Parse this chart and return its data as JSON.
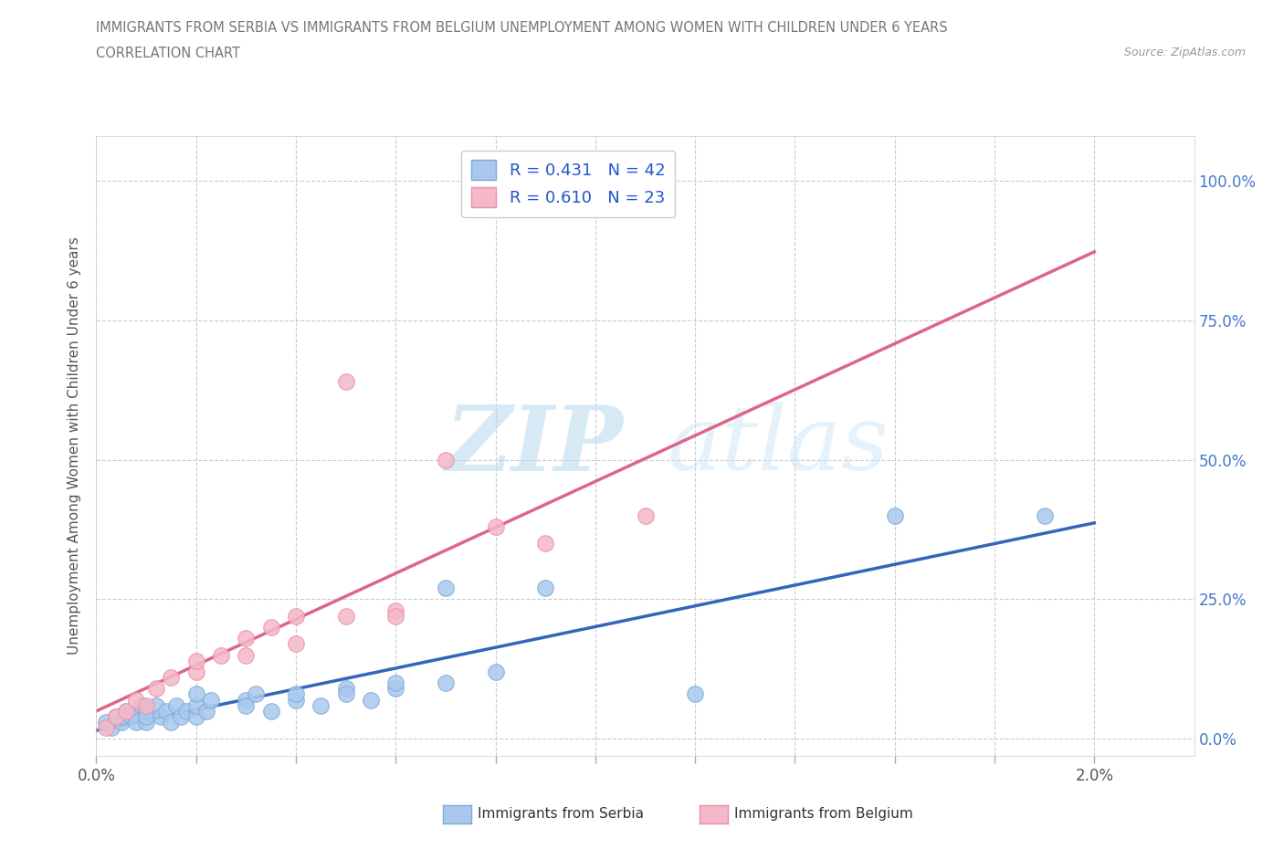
{
  "title_line1": "IMMIGRANTS FROM SERBIA VS IMMIGRANTS FROM BELGIUM UNEMPLOYMENT AMONG WOMEN WITH CHILDREN UNDER 6 YEARS",
  "title_line2": "CORRELATION CHART",
  "source": "Source: ZipAtlas.com",
  "ylabel_label": "Unemployment Among Women with Children Under 6 years",
  "xlim": [
    0.0,
    0.022
  ],
  "ylim": [
    -0.03,
    1.08
  ],
  "serbia_color": "#aac8ee",
  "serbia_edge_color": "#7aadd4",
  "belgium_color": "#f5b8c8",
  "belgium_edge_color": "#e890a8",
  "serbia_line_color": "#3366bb",
  "belgium_line_color": "#dd6688",
  "r_serbia": 0.431,
  "n_serbia": 42,
  "r_belgium": 0.61,
  "n_belgium": 23,
  "legend_text_color": "#2255cc",
  "watermark_color": "#cce4f5",
  "grid_color": "#cccccc",
  "background_color": "#ffffff",
  "serbia_x": [
    0.0002,
    0.0003,
    0.0004,
    0.0005,
    0.0006,
    0.0007,
    0.0008,
    0.0009,
    0.001,
    0.001,
    0.001,
    0.0012,
    0.0013,
    0.0014,
    0.0015,
    0.0016,
    0.0017,
    0.0018,
    0.002,
    0.002,
    0.002,
    0.0022,
    0.0023,
    0.003,
    0.003,
    0.0032,
    0.0035,
    0.004,
    0.004,
    0.0045,
    0.005,
    0.005,
    0.0055,
    0.006,
    0.006,
    0.007,
    0.007,
    0.008,
    0.009,
    0.012,
    0.016,
    0.019
  ],
  "serbia_y": [
    0.03,
    0.02,
    0.04,
    0.03,
    0.05,
    0.04,
    0.03,
    0.06,
    0.03,
    0.05,
    0.04,
    0.06,
    0.04,
    0.05,
    0.03,
    0.06,
    0.04,
    0.05,
    0.04,
    0.06,
    0.08,
    0.05,
    0.07,
    0.07,
    0.06,
    0.08,
    0.05,
    0.07,
    0.08,
    0.06,
    0.09,
    0.08,
    0.07,
    0.09,
    0.1,
    0.1,
    0.27,
    0.12,
    0.27,
    0.08,
    0.4,
    0.4
  ],
  "belgium_x": [
    0.0002,
    0.0004,
    0.0006,
    0.0008,
    0.001,
    0.0012,
    0.0015,
    0.002,
    0.002,
    0.0025,
    0.003,
    0.003,
    0.0035,
    0.004,
    0.004,
    0.005,
    0.005,
    0.006,
    0.006,
    0.007,
    0.008,
    0.009,
    0.011
  ],
  "belgium_y": [
    0.02,
    0.04,
    0.05,
    0.07,
    0.06,
    0.09,
    0.11,
    0.12,
    0.14,
    0.15,
    0.15,
    0.18,
    0.2,
    0.17,
    0.22,
    0.22,
    0.64,
    0.23,
    0.22,
    0.5,
    0.38,
    0.35,
    0.4
  ],
  "ytick_vals": [
    0.0,
    0.25,
    0.5,
    0.75,
    1.0
  ],
  "xtick_vals": [
    0.0,
    0.002,
    0.004,
    0.006,
    0.008,
    0.01,
    0.012,
    0.014,
    0.016,
    0.018,
    0.02
  ]
}
